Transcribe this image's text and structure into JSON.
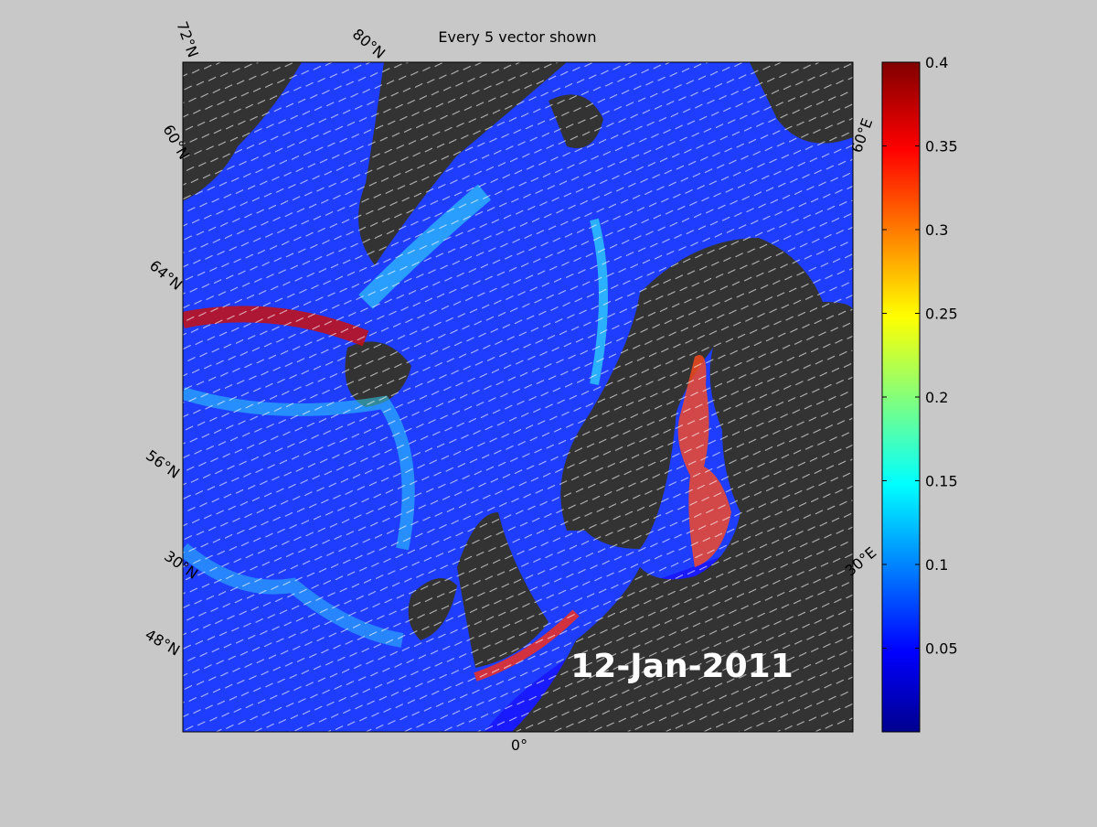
{
  "title": "Every 5 vector shown",
  "date": "12-Jan-2011",
  "graticule_labels": [
    "72°N",
    "80°N",
    "60°N",
    "64°N",
    "56°N",
    "30°N",
    "48°N",
    "0°",
    "30°E",
    "60°E"
  ],
  "colorbar": {
    "colormap": "jet",
    "lim": [
      0,
      0.4
    ],
    "ticks": [
      0.05,
      0.1,
      0.15,
      0.2,
      0.25,
      0.3,
      0.35,
      0.4
    ]
  }
}
